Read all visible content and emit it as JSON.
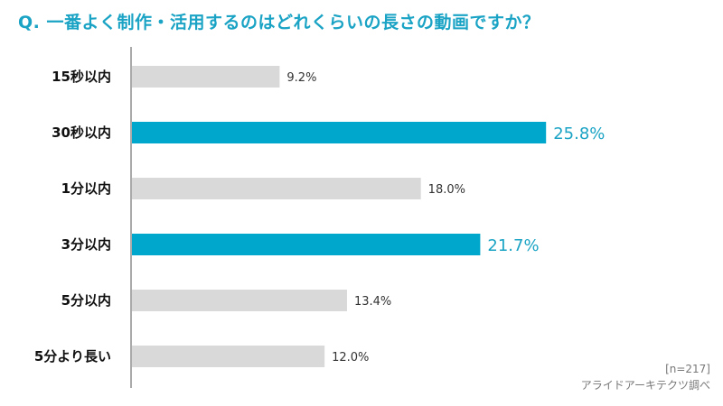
{
  "title": "Q. 一番よく制作・活用するのはどれくらいの長さの動画ですか？",
  "note_n": "[n=217]",
  "note_source": "アライドアーキテクツ調べ",
  "colors": {
    "highlight": "#00a7cc",
    "normal": "#d9d9d9",
    "title": "#1aa3c4"
  },
  "chart_data": {
    "type": "bar",
    "orientation": "horizontal",
    "categories": [
      "15秒以内",
      "30秒以内",
      "1分以内",
      "3分以内",
      "5分以内",
      "5分より長い"
    ],
    "values": [
      9.2,
      25.8,
      18.0,
      21.7,
      13.4,
      12.0
    ],
    "value_labels": [
      "9.2%",
      "25.8%",
      "18.0%",
      "21.7%",
      "13.4%",
      "12.0%"
    ],
    "highlighted": [
      "30秒以内",
      "3分以内"
    ],
    "unit": "%",
    "xlim": [
      0,
      100
    ],
    "grid": false,
    "legend": "none"
  }
}
